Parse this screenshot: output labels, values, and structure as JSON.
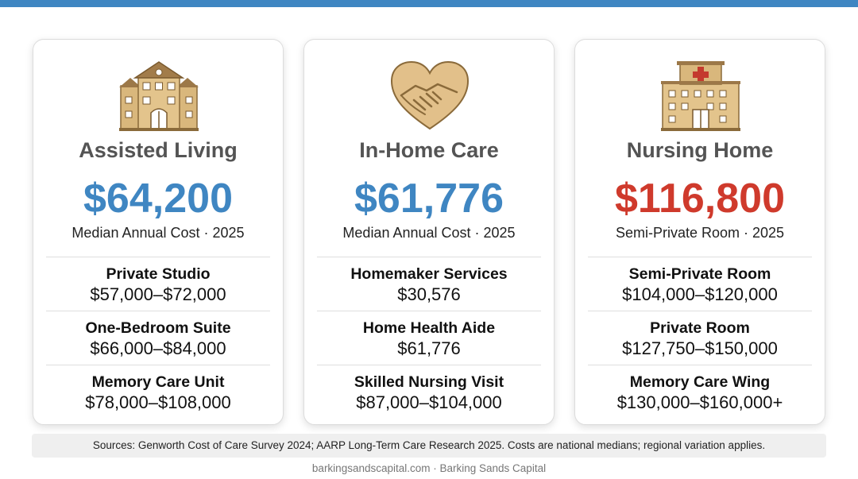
{
  "colors": {
    "accent_blue": "#3f86c2",
    "accent_red": "#cf3a2c",
    "icon_gold": "#c9a56a"
  },
  "cards": [
    {
      "icon": "house-icon",
      "title": "Assisted Living",
      "price": "$64,200",
      "price_color": "#3f86c2",
      "caption": "Median Annual Cost · 2025",
      "rows": [
        {
          "label": "Private Studio",
          "value": "$57,000–$72,000"
        },
        {
          "label": "One-Bedroom Suite",
          "value": "$66,000–$84,000"
        },
        {
          "label": "Memory Care Unit",
          "value": "$78,000–$108,000"
        }
      ]
    },
    {
      "icon": "heart-handshake-icon",
      "title": "In-Home Care",
      "price": "$61,776",
      "price_color": "#3f86c2",
      "caption": "Median Annual Cost · 2025",
      "rows": [
        {
          "label": "Homemaker Services",
          "value": "$30,576"
        },
        {
          "label": "Home Health Aide",
          "value": "$61,776"
        },
        {
          "label": "Skilled Nursing Visit",
          "value": "$87,000–$104,000"
        }
      ]
    },
    {
      "icon": "hospital-icon",
      "title": "Nursing Home",
      "price": "$116,800",
      "price_color": "#cf3a2c",
      "caption": "Semi-Private Room · 2025",
      "rows": [
        {
          "label": "Semi-Private Room",
          "value": "$104,000–$120,000"
        },
        {
          "label": "Private Room",
          "value": "$127,750–$150,000"
        },
        {
          "label": "Memory Care Wing",
          "value": "$130,000–$160,000+"
        }
      ]
    }
  ],
  "sources": "Sources: Genworth Cost of Care Survey 2024; AARP Long-Term Care Research 2025. Costs are national medians; regional variation applies.",
  "footer": "barkingsandscapital.com · Barking Sands Capital"
}
